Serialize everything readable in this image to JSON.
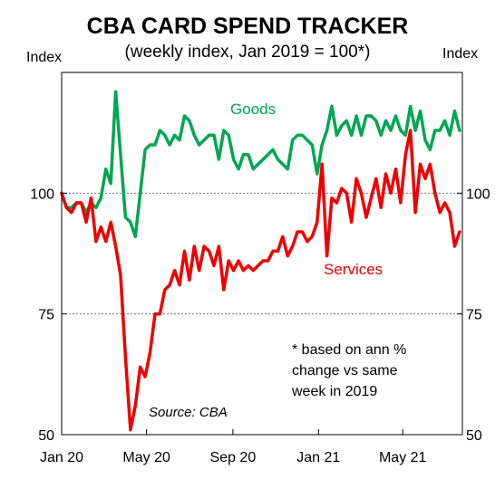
{
  "chart_data": {
    "type": "line",
    "title": "CBA CARD SPEND TRACKER",
    "subtitle": "(weekly index, Jan 2019 = 100*)",
    "ylabel_left": "Index",
    "ylabel_right": "Index",
    "ylim": [
      50,
      125
    ],
    "y_ticks": [
      50,
      75,
      100
    ],
    "reference_lines": [
      75,
      100
    ],
    "x_range": [
      "2020-01-01",
      "2021-07-25"
    ],
    "x_ticks": [
      {
        "date": "2020-01-01",
        "label": "Jan 20"
      },
      {
        "date": "2020-05-01",
        "label": "May 20"
      },
      {
        "date": "2020-09-01",
        "label": "Sep 20"
      },
      {
        "date": "2021-01-01",
        "label": "Jan 21"
      },
      {
        "date": "2021-05-01",
        "label": "May 21"
      }
    ],
    "grid": false,
    "legend": "inline",
    "x": [
      "2020-01-01",
      "2020-01-08",
      "2020-01-15",
      "2020-01-22",
      "2020-01-29",
      "2020-02-05",
      "2020-02-12",
      "2020-02-19",
      "2020-02-26",
      "2020-03-04",
      "2020-03-11",
      "2020-03-18",
      "2020-03-25",
      "2020-04-01",
      "2020-04-08",
      "2020-04-15",
      "2020-04-22",
      "2020-04-29",
      "2020-05-06",
      "2020-05-13",
      "2020-05-20",
      "2020-05-27",
      "2020-06-03",
      "2020-06-10",
      "2020-06-17",
      "2020-06-24",
      "2020-07-01",
      "2020-07-08",
      "2020-07-15",
      "2020-07-22",
      "2020-07-29",
      "2020-08-05",
      "2020-08-12",
      "2020-08-19",
      "2020-08-26",
      "2020-09-02",
      "2020-09-09",
      "2020-09-16",
      "2020-09-23",
      "2020-09-30",
      "2020-10-07",
      "2020-10-14",
      "2020-10-21",
      "2020-10-28",
      "2020-11-04",
      "2020-11-11",
      "2020-11-18",
      "2020-11-25",
      "2020-12-02",
      "2020-12-09",
      "2020-12-16",
      "2020-12-23",
      "2020-12-30",
      "2021-01-06",
      "2021-01-13",
      "2021-01-20",
      "2021-01-27",
      "2021-02-03",
      "2021-02-10",
      "2021-02-17",
      "2021-02-24",
      "2021-03-03",
      "2021-03-10",
      "2021-03-17",
      "2021-03-24",
      "2021-03-31",
      "2021-04-07",
      "2021-04-14",
      "2021-04-21",
      "2021-04-28",
      "2021-05-05",
      "2021-05-12",
      "2021-05-19",
      "2021-05-26",
      "2021-06-02",
      "2021-06-09",
      "2021-06-16",
      "2021-06-23",
      "2021-06-30",
      "2021-07-07",
      "2021-07-14",
      "2021-07-21"
    ],
    "series": [
      {
        "name": "Goods",
        "color": "#00a651",
        "values": [
          100,
          97,
          97,
          98,
          98,
          96,
          98,
          97,
          99,
          105,
          102,
          121,
          108,
          95,
          94,
          91,
          100,
          109,
          110,
          110,
          113,
          112,
          110,
          112,
          111,
          116,
          115,
          112,
          110,
          111,
          112,
          112,
          107,
          113,
          112,
          107,
          105,
          108,
          108,
          105,
          106,
          107,
          108,
          109,
          107,
          106,
          105,
          111,
          112,
          112,
          111,
          110,
          104,
          110,
          113,
          118,
          112,
          114,
          115,
          112,
          116,
          112,
          116,
          116,
          115,
          112,
          115,
          113,
          116,
          113,
          112,
          118,
          113,
          117,
          111,
          109,
          113,
          113,
          115,
          112,
          117,
          113
        ]
      },
      {
        "name": "Services",
        "color": "#ee0000",
        "values": [
          100,
          97,
          96,
          98,
          98,
          94,
          99,
          90,
          93,
          90,
          94,
          89,
          83,
          66,
          51,
          56,
          64,
          62,
          67,
          75,
          75,
          80,
          81,
          84,
          81,
          88,
          82,
          89,
          84,
          89,
          88,
          85,
          89,
          80,
          86,
          84,
          86,
          84,
          85,
          84,
          85,
          86,
          86,
          88,
          88,
          91,
          87,
          89,
          92,
          92,
          90,
          91,
          94,
          106,
          87,
          99,
          98,
          101,
          100,
          94,
          103,
          100,
          95,
          99,
          103,
          97,
          104,
          100,
          105,
          98,
          108,
          113,
          96,
          106,
          103,
          106,
          100,
          96,
          98,
          96,
          89,
          92
        ]
      }
    ],
    "series_labels": [
      "Goods",
      "Services"
    ],
    "annotation": [
      "* based on ann %",
      "change vs same",
      "week in 2019"
    ],
    "source": "Source: CBA"
  }
}
